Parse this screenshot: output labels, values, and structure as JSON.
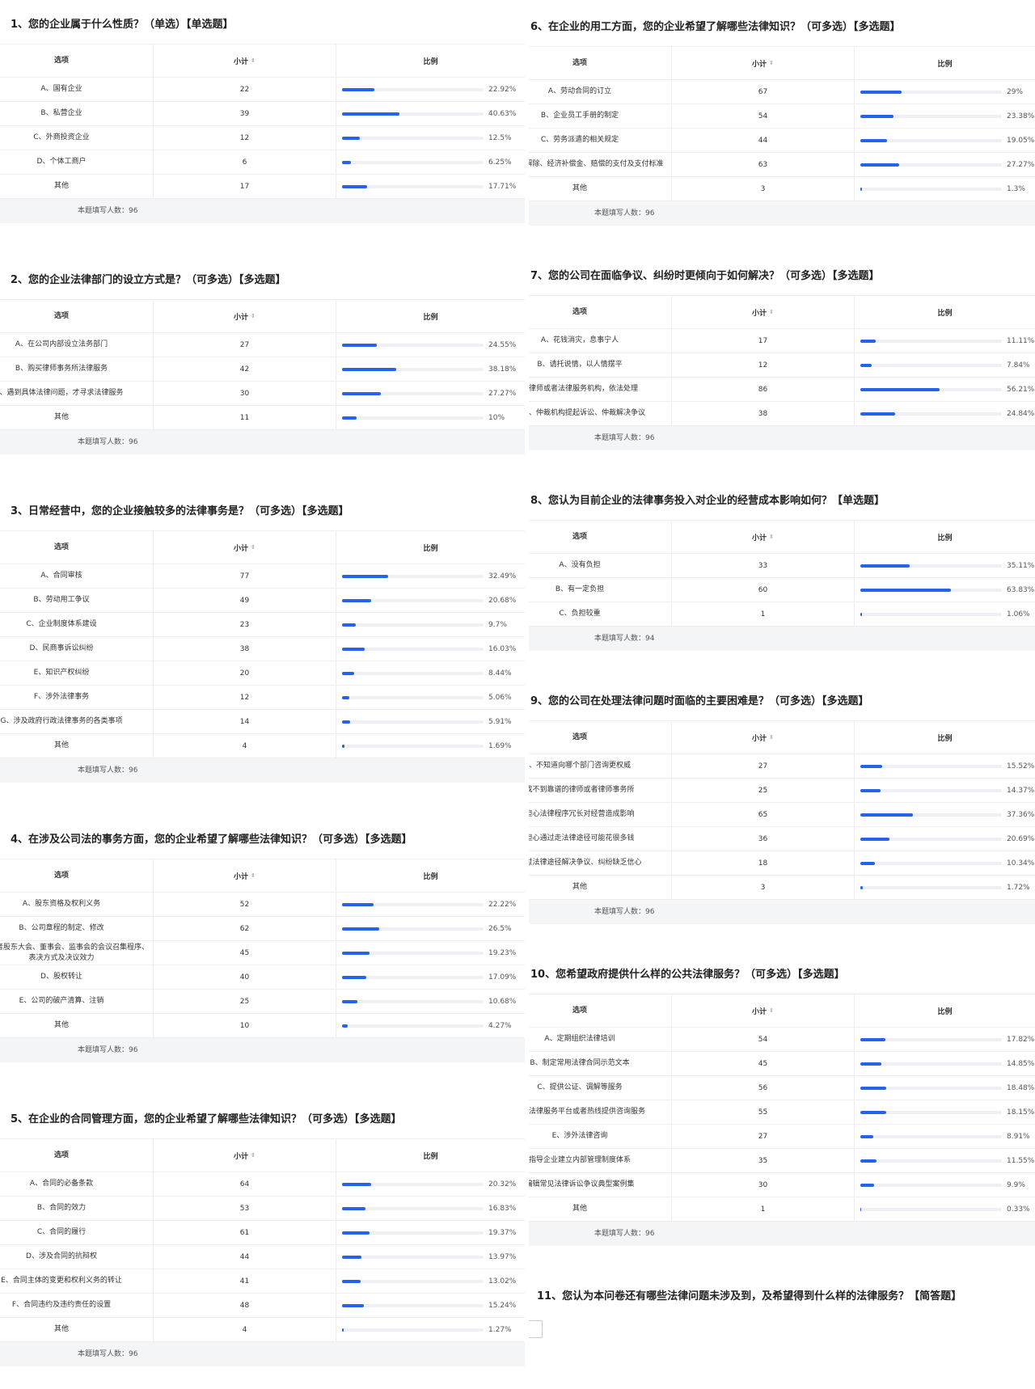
{
  "table_header": [
    "选项",
    "小计",
    "比例"
  ],
  "questions": [
    {
      "title": "1、您的企业属于什么性质？（单选）【单选题】",
      "rows": [
        {
          "option": "A、国有企业",
          "count": 22,
          "ratio": {
            "value": 22.92,
            "label": "22.92%"
          }
        },
        {
          "option": "B、私营企业",
          "count": 39,
          "ratio": {
            "value": 40.63,
            "label": "40.63%"
          }
        },
        {
          "option": "C、外商投资企业",
          "count": 12,
          "ratio": {
            "value": 12.5,
            "label": "12.5%"
          }
        },
        {
          "option": "D、个体工商户",
          "count": 6,
          "ratio": {
            "value": 6.25,
            "label": "6.25%"
          }
        },
        {
          "option": "其他",
          "count": 17,
          "ratio": {
            "value": 17.71,
            "label": "17.71%"
          }
        }
      ],
      "footer": "本题填写人数：96"
    },
    {
      "title": "2、您的企业法律部门的设立方式是？（可多选）【多选题】",
      "rows": [
        {
          "option": "A、在公司内部设立法务部门",
          "count": 27,
          "ratio": {
            "value": 24.55,
            "label": "24.55%"
          }
        },
        {
          "option": "B、购买律师事务所法律服务",
          "count": 42,
          "ratio": {
            "value": 38.18,
            "label": "38.18%"
          }
        },
        {
          "option": "、遇到具体法律问题，才寻求法律服务",
          "count": 30,
          "ratio": {
            "value": 27.27,
            "label": "27.27%"
          }
        },
        {
          "option": "其他",
          "count": 11,
          "ratio": {
            "value": 10,
            "label": "10%"
          }
        }
      ],
      "footer": "本题填写人数：96"
    },
    {
      "title": "3、日常经营中，您的企业接触较多的法律事务是？（可多选）【多选题】",
      "rows": [
        {
          "option": "A、合同审核",
          "count": 77,
          "ratio": {
            "value": 32.49,
            "label": "32.49%"
          }
        },
        {
          "option": "B、劳动用工争议",
          "count": 49,
          "ratio": {
            "value": 20.68,
            "label": "20.68%"
          }
        },
        {
          "option": "C、企业制度体系建设",
          "count": 23,
          "ratio": {
            "value": 9.7,
            "label": "9.7%"
          }
        },
        {
          "option": "D、民商事诉讼纠纷",
          "count": 38,
          "ratio": {
            "value": 16.03,
            "label": "16.03%"
          }
        },
        {
          "option": "E、知识产权纠纷",
          "count": 20,
          "ratio": {
            "value": 8.44,
            "label": "8.44%"
          }
        },
        {
          "option": "F、涉外法律事务",
          "count": 12,
          "ratio": {
            "value": 5.06,
            "label": "5.06%"
          }
        },
        {
          "option": "G、涉及政府行政法律事务的各类事项",
          "count": 14,
          "ratio": {
            "value": 5.91,
            "label": "5.91%"
          }
        },
        {
          "option": "其他",
          "count": 4,
          "ratio": {
            "value": 1.69,
            "label": "1.69%"
          }
        }
      ],
      "footer": "本题填写人数：96"
    },
    {
      "title": "4、在涉及公司法的事务方面，您的企业希望了解哪些法律知识？（可多选）【多选题】",
      "rows": [
        {
          "option": "A、股东资格及权利义务",
          "count": 52,
          "ratio": {
            "value": 22.22,
            "label": "22.22%"
          }
        },
        {
          "option": "B、公司章程的制定、修改",
          "count": 62,
          "ratio": {
            "value": 26.5,
            "label": "26.5%"
          }
        },
        {
          "option": "东会或者股东大会、董事会、监事会的会议召集程序、表决方式及决议效力",
          "count": 45,
          "ratio": {
            "value": 19.23,
            "label": "19.23%"
          }
        },
        {
          "option": "D、股权转让",
          "count": 40,
          "ratio": {
            "value": 17.09,
            "label": "17.09%"
          }
        },
        {
          "option": "E、公司的破产清算、注销",
          "count": 25,
          "ratio": {
            "value": 10.68,
            "label": "10.68%"
          }
        },
        {
          "option": "其他",
          "count": 10,
          "ratio": {
            "value": 4.27,
            "label": "4.27%"
          }
        }
      ],
      "footer": "本题填写人数：96"
    },
    {
      "title": "5、在企业的合同管理方面，您的企业希望了解哪些法律知识？（可多选）【多选题】",
      "rows": [
        {
          "option": "A、合同的必备条款",
          "count": 64,
          "ratio": {
            "value": 20.32,
            "label": "20.32%"
          }
        },
        {
          "option": "B、合同的效力",
          "count": 53,
          "ratio": {
            "value": 16.83,
            "label": "16.83%"
          }
        },
        {
          "option": "C、合同的履行",
          "count": 61,
          "ratio": {
            "value": 19.37,
            "label": "19.37%"
          }
        },
        {
          "option": "D、涉及合同的抗辩权",
          "count": 44,
          "ratio": {
            "value": 13.97,
            "label": "13.97%"
          }
        },
        {
          "option": "E、合同主体的变更和权利义务的转让",
          "count": 41,
          "ratio": {
            "value": 13.02,
            "label": "13.02%"
          }
        },
        {
          "option": "F、合同违约及违约责任的设置",
          "count": 48,
          "ratio": {
            "value": 15.24,
            "label": "15.24%"
          }
        },
        {
          "option": "其他",
          "count": 4,
          "ratio": {
            "value": 1.27,
            "label": "1.27%"
          }
        }
      ],
      "footer": "本题填写人数：96"
    },
    {
      "title": "6、在企业的用工方面，您的企业希望了解哪些法律知识？（可多选）【多选题】",
      "rows": [
        {
          "option": "A、劳动合同的订立",
          "count": 67,
          "ratio": {
            "value": 29,
            "label": "29%"
          }
        },
        {
          "option": "B、企业员工手册的制定",
          "count": 54,
          "ratio": {
            "value": 23.38,
            "label": "23.38%"
          }
        },
        {
          "option": "C、劳务派遣的相关规定",
          "count": 44,
          "ratio": {
            "value": 19.05,
            "label": "19.05%"
          }
        },
        {
          "option": "动关系的解除、经济补偿金、赔偿的支付及支付标准",
          "count": 63,
          "ratio": {
            "value": 27.27,
            "label": "27.27%"
          }
        },
        {
          "option": "其他",
          "count": 3,
          "ratio": {
            "value": 1.3,
            "label": "1.3%"
          }
        }
      ],
      "footer": "本题填写人数：96"
    },
    {
      "title": "7、您的公司在面临争议、纠纷时更倾向于如何解决？（可多选）【多选题】",
      "rows": [
        {
          "option": "A、花钱消灾，息事宁人",
          "count": 17,
          "ratio": {
            "value": 11.11,
            "label": "11.11%"
          }
        },
        {
          "option": "B、请托说情，以人情摆平",
          "count": 12,
          "ratio": {
            "value": 7.84,
            "label": "7.84%"
          }
        },
        {
          "option": "询律师或者法律服务机构，依法处理",
          "count": 86,
          "ratio": {
            "value": 56.21,
            "label": "56.21%"
          }
        },
        {
          "option": "法院、仲裁机构提起诉讼、仲裁解决争议",
          "count": 38,
          "ratio": {
            "value": 24.84,
            "label": "24.84%"
          }
        }
      ],
      "footer": "本题填写人数：96"
    },
    {
      "title": "8、您认为目前企业的法律事务投入对企业的经营成本影响如何？【单选题】",
      "rows": [
        {
          "option": "A、没有负担",
          "count": 33,
          "ratio": {
            "value": 35.11,
            "label": "35.11%"
          }
        },
        {
          "option": "B、有一定负担",
          "count": 60,
          "ratio": {
            "value": 63.83,
            "label": "63.83%"
          }
        },
        {
          "option": "C、负担较重",
          "count": 1,
          "ratio": {
            "value": 1.06,
            "label": "1.06%"
          }
        }
      ],
      "footer": "本题填写人数：94"
    },
    {
      "title": "9、您的公司在处理法律问题时面临的主要困难是？（可多选）【多选题】",
      "rows": [
        {
          "option": "、不知道向哪个部门咨询更权威",
          "count": 27,
          "ratio": {
            "value": 15.52,
            "label": "15.52%"
          }
        },
        {
          "option": "找不到靠谱的律师或者律师事务所",
          "count": 25,
          "ratio": {
            "value": 14.37,
            "label": "14.37%"
          }
        },
        {
          "option": "担心法律程序冗长对经营造成影响",
          "count": 65,
          "ratio": {
            "value": 37.36,
            "label": "37.36%"
          }
        },
        {
          "option": "担心通过走法律途径可能花很多钱",
          "count": 36,
          "ratio": {
            "value": 20.69,
            "label": "20.69%"
          }
        },
        {
          "option": "通过法律途径解决争议、纠纷缺乏信心",
          "count": 18,
          "ratio": {
            "value": 10.34,
            "label": "10.34%"
          }
        },
        {
          "option": "其他",
          "count": 3,
          "ratio": {
            "value": 1.72,
            "label": "1.72%"
          }
        }
      ],
      "footer": "本题填写人数：96"
    },
    {
      "title": "10、您希望政府提供什么样的公共法律服务？（可多选）【多选题】",
      "rows": [
        {
          "option": "A、定期组织法律培训",
          "count": 54,
          "ratio": {
            "value": 17.82,
            "label": "17.82%"
          }
        },
        {
          "option": "B、制定常用法律合同示范文本",
          "count": 45,
          "ratio": {
            "value": 14.85,
            "label": "14.85%"
          }
        },
        {
          "option": "C、提供公证、调解等服务",
          "count": 56,
          "ratio": {
            "value": 18.48,
            "label": "18.48%"
          }
        },
        {
          "option": "公共法律服务平台或者热线提供咨询服务",
          "count": 55,
          "ratio": {
            "value": 18.15,
            "label": "18.15%"
          }
        },
        {
          "option": "E、涉外法律咨询",
          "count": 27,
          "ratio": {
            "value": 8.91,
            "label": "8.91%"
          }
        },
        {
          "option": "指导企业建立内部管理制度体系",
          "count": 35,
          "ratio": {
            "value": 11.55,
            "label": "11.55%"
          }
        },
        {
          "option": "编辑常见法律诉讼争议典型案例集",
          "count": 30,
          "ratio": {
            "value": 9.9,
            "label": "9.9%"
          }
        },
        {
          "option": "其他",
          "count": 1,
          "ratio": {
            "value": 0.33,
            "label": "0.33%"
          }
        }
      ],
      "footer": "本题填写人数：96"
    }
  ],
  "open_question": {
    "title": "11、您认为本问卷还有哪些法律问题未涉及到，及希望得到什么样的法律服务？【简答题】"
  }
}
